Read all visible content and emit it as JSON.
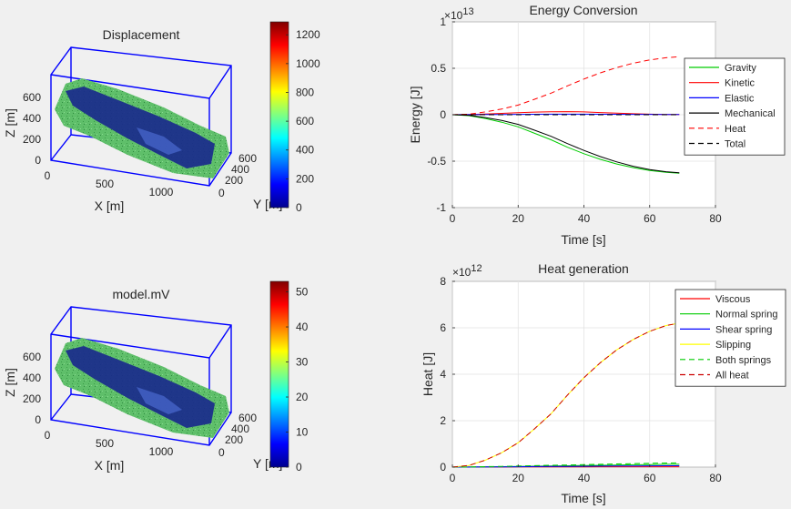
{
  "colors": {
    "background": "#f0f0f0",
    "axes_bg": "#ffffff",
    "box_3d": "#0000ff",
    "terrain_green": "#5fbf6a",
    "slide_blue": "#1a2a8c",
    "jet": [
      "#00008f",
      "#0000ff",
      "#0080ff",
      "#00ffff",
      "#80ff80",
      "#ffff00",
      "#ff8000",
      "#ff0000",
      "#800000"
    ]
  },
  "panel_3d": [
    {
      "title": "Displacement",
      "xlabel": "X [m]",
      "ylabel": "Y [m]",
      "zlabel": "Z [m]",
      "xticks": [
        "0",
        "500",
        "1000"
      ],
      "yticks": [
        "0",
        "200",
        "400",
        "600"
      ],
      "zticks": [
        "0",
        "200",
        "400",
        "600"
      ],
      "colorbar_ticks": [
        "0",
        "200",
        "400",
        "600",
        "800",
        "1000",
        "1200"
      ],
      "colorbar_max": 1290
    },
    {
      "title": "model.mV",
      "xlabel": "X [m]",
      "ylabel": "Y [m]",
      "zlabel": "Z [m]",
      "xticks": [
        "0",
        "500",
        "1000"
      ],
      "yticks": [
        "0",
        "200",
        "400",
        "600"
      ],
      "zticks": [
        "0",
        "200",
        "400",
        "600"
      ],
      "colorbar_ticks": [
        "0",
        "10",
        "20",
        "30",
        "40",
        "50"
      ],
      "colorbar_max": 53
    }
  ],
  "chart_data": [
    {
      "type": "line",
      "title": "Energy Conversion",
      "xlabel": "Time [s]",
      "ylabel": "Energy [J]",
      "exponent_label": "×10",
      "exponent_power": "13",
      "xlim": [
        0,
        80
      ],
      "ylim": [
        -1,
        1
      ],
      "xticks": [
        0,
        20,
        40,
        60,
        80
      ],
      "yticks": [
        -1,
        -0.5,
        0,
        0.5,
        1
      ],
      "ytick_labels": [
        "-1",
        "-0.5",
        "0",
        "0.5",
        "1"
      ],
      "grid": true,
      "legend_position": "right",
      "x": [
        0,
        5,
        10,
        15,
        20,
        25,
        30,
        35,
        40,
        45,
        50,
        55,
        60,
        65,
        69
      ],
      "series": [
        {
          "name": "Gravity",
          "color": "#00cc00",
          "dash": "none",
          "values": [
            0,
            -0.01,
            -0.04,
            -0.08,
            -0.13,
            -0.2,
            -0.27,
            -0.35,
            -0.42,
            -0.48,
            -0.53,
            -0.57,
            -0.6,
            -0.62,
            -0.63
          ]
        },
        {
          "name": "Kinetic",
          "color": "#ff0000",
          "dash": "none",
          "values": [
            0,
            0.003,
            0.008,
            0.015,
            0.022,
            0.028,
            0.032,
            0.033,
            0.03,
            0.024,
            0.017,
            0.011,
            0.006,
            0.003,
            0.002
          ]
        },
        {
          "name": "Elastic",
          "color": "#0000ff",
          "dash": "none",
          "values": [
            0,
            0.001,
            0.002,
            0.003,
            0.004,
            0.005,
            0.006,
            0.006,
            0.006,
            0.005,
            0.005,
            0.004,
            0.004,
            0.003,
            0.003
          ]
        },
        {
          "name": "Mechanical",
          "color": "#000000",
          "dash": "none",
          "values": [
            0,
            -0.006,
            -0.03,
            -0.062,
            -0.104,
            -0.167,
            -0.232,
            -0.311,
            -0.384,
            -0.451,
            -0.508,
            -0.555,
            -0.59,
            -0.614,
            -0.625
          ]
        },
        {
          "name": "Heat",
          "color": "#ff0000",
          "dash": "6,4",
          "values": [
            0,
            0.006,
            0.03,
            0.062,
            0.104,
            0.167,
            0.232,
            0.311,
            0.384,
            0.451,
            0.508,
            0.555,
            0.59,
            0.614,
            0.625
          ]
        },
        {
          "name": "Total",
          "color": "#000000",
          "dash": "6,4",
          "values": [
            0,
            0,
            0,
            0,
            0,
            0,
            0,
            0,
            0,
            0,
            0,
            0,
            0,
            0,
            0
          ]
        }
      ]
    },
    {
      "type": "line",
      "title": "Heat generation",
      "xlabel": "Time [s]",
      "ylabel": "Heat [J]",
      "exponent_label": "×10",
      "exponent_power": "12",
      "xlim": [
        0,
        80
      ],
      "ylim": [
        0,
        8
      ],
      "xticks": [
        0,
        20,
        40,
        60,
        80
      ],
      "yticks": [
        0,
        2,
        4,
        6,
        8
      ],
      "ytick_labels": [
        "0",
        "2",
        "4",
        "6",
        "8"
      ],
      "grid": true,
      "legend_position": "right",
      "x": [
        0,
        5,
        10,
        15,
        20,
        25,
        30,
        35,
        40,
        45,
        50,
        55,
        60,
        65,
        69
      ],
      "series": [
        {
          "name": "Viscous",
          "color": "#ff0000",
          "dash": "none",
          "values": [
            0,
            0.001,
            0.002,
            0.004,
            0.006,
            0.008,
            0.01,
            0.012,
            0.013,
            0.014,
            0.015,
            0.015,
            0.016,
            0.016,
            0.016
          ]
        },
        {
          "name": "Normal spring",
          "color": "#00cc00",
          "dash": "none",
          "values": [
            0,
            0.005,
            0.012,
            0.02,
            0.03,
            0.04,
            0.05,
            0.06,
            0.07,
            0.08,
            0.09,
            0.1,
            0.11,
            0.12,
            0.12
          ]
        },
        {
          "name": "Shear spring",
          "color": "#0000ff",
          "dash": "none",
          "values": [
            0,
            0.003,
            0.007,
            0.012,
            0.017,
            0.022,
            0.027,
            0.032,
            0.037,
            0.042,
            0.046,
            0.05,
            0.054,
            0.057,
            0.06
          ]
        },
        {
          "name": "Slipping",
          "color": "#ffff00",
          "dash": "none",
          "values": [
            0,
            0.07,
            0.3,
            0.62,
            1.05,
            1.65,
            2.3,
            3.1,
            3.85,
            4.5,
            5.05,
            5.5,
            5.85,
            6.1,
            6.2
          ]
        },
        {
          "name": "Both springs",
          "color": "#00cc00",
          "dash": "6,4",
          "values": [
            0,
            0.008,
            0.02,
            0.032,
            0.047,
            0.062,
            0.077,
            0.092,
            0.107,
            0.122,
            0.136,
            0.15,
            0.164,
            0.177,
            0.18
          ]
        },
        {
          "name": "All heat",
          "color": "#cc0000",
          "dash": "6,4",
          "values": [
            0,
            0.07,
            0.3,
            0.62,
            1.05,
            1.65,
            2.3,
            3.1,
            3.85,
            4.5,
            5.05,
            5.5,
            5.85,
            6.1,
            6.2
          ]
        }
      ]
    }
  ]
}
